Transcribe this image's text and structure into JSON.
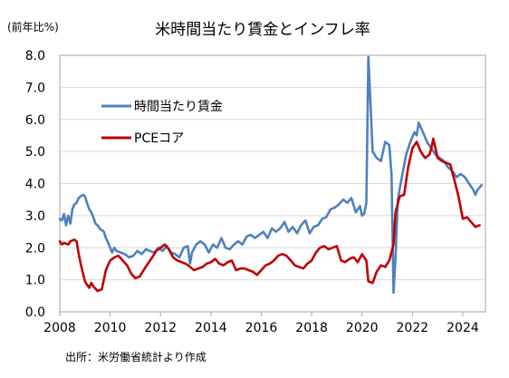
{
  "chart_data": {
    "type": "line",
    "title": "米時間当たり賃金とインフレ率",
    "ylabel": "(前年比%)",
    "xlabel": "",
    "source": "出所：米労働省統計より作成",
    "xlim": [
      2008,
      2024.9
    ],
    "ylim": [
      0,
      8
    ],
    "xticks": [
      2008,
      2010,
      2012,
      2014,
      2016,
      2018,
      2020,
      2022,
      2024
    ],
    "yticks": [
      "0.0",
      "1.0",
      "2.0",
      "3.0",
      "4.0",
      "5.0",
      "6.0",
      "7.0",
      "8.0"
    ],
    "grid": "horizontal",
    "legend_position": "upper-left",
    "series": [
      {
        "name": "時間当たり賃金",
        "color": "#4f81bd",
        "points": [
          [
            2008.0,
            2.9
          ],
          [
            2008.08,
            2.85
          ],
          [
            2008.17,
            3.05
          ],
          [
            2008.25,
            2.7
          ],
          [
            2008.33,
            3.0
          ],
          [
            2008.42,
            2.75
          ],
          [
            2008.5,
            3.2
          ],
          [
            2008.58,
            3.35
          ],
          [
            2008.67,
            3.4
          ],
          [
            2008.75,
            3.55
          ],
          [
            2008.83,
            3.6
          ],
          [
            2008.92,
            3.65
          ],
          [
            2009.0,
            3.6
          ],
          [
            2009.08,
            3.4
          ],
          [
            2009.17,
            3.2
          ],
          [
            2009.25,
            3.1
          ],
          [
            2009.33,
            2.95
          ],
          [
            2009.42,
            2.75
          ],
          [
            2009.5,
            2.7
          ],
          [
            2009.58,
            2.6
          ],
          [
            2009.67,
            2.55
          ],
          [
            2009.75,
            2.5
          ],
          [
            2009.83,
            2.3
          ],
          [
            2009.92,
            2.15
          ],
          [
            2010.0,
            2.0
          ],
          [
            2010.08,
            1.85
          ],
          [
            2010.17,
            2.0
          ],
          [
            2010.25,
            1.9
          ],
          [
            2010.42,
            1.85
          ],
          [
            2010.58,
            1.8
          ],
          [
            2010.75,
            1.7
          ],
          [
            2010.92,
            1.75
          ],
          [
            2011.08,
            1.9
          ],
          [
            2011.25,
            1.8
          ],
          [
            2011.42,
            1.95
          ],
          [
            2011.58,
            1.9
          ],
          [
            2011.75,
            1.85
          ],
          [
            2011.92,
            2.0
          ],
          [
            2012.08,
            1.9
          ],
          [
            2012.25,
            2.05
          ],
          [
            2012.42,
            1.85
          ],
          [
            2012.58,
            1.8
          ],
          [
            2012.75,
            1.7
          ],
          [
            2012.92,
            2.0
          ],
          [
            2013.08,
            2.05
          ],
          [
            2013.17,
            1.5
          ],
          [
            2013.25,
            1.85
          ],
          [
            2013.42,
            2.1
          ],
          [
            2013.58,
            2.2
          ],
          [
            2013.75,
            2.1
          ],
          [
            2013.92,
            1.85
          ],
          [
            2014.08,
            2.1
          ],
          [
            2014.25,
            2.0
          ],
          [
            2014.42,
            2.3
          ],
          [
            2014.58,
            2.0
          ],
          [
            2014.75,
            1.95
          ],
          [
            2014.92,
            2.1
          ],
          [
            2015.08,
            2.2
          ],
          [
            2015.25,
            2.1
          ],
          [
            2015.42,
            2.35
          ],
          [
            2015.58,
            2.4
          ],
          [
            2015.75,
            2.3
          ],
          [
            2015.92,
            2.4
          ],
          [
            2016.08,
            2.5
          ],
          [
            2016.25,
            2.3
          ],
          [
            2016.42,
            2.6
          ],
          [
            2016.58,
            2.5
          ],
          [
            2016.75,
            2.6
          ],
          [
            2016.92,
            2.8
          ],
          [
            2017.08,
            2.5
          ],
          [
            2017.25,
            2.65
          ],
          [
            2017.42,
            2.45
          ],
          [
            2017.58,
            2.7
          ],
          [
            2017.75,
            2.85
          ],
          [
            2017.92,
            2.45
          ],
          [
            2018.08,
            2.65
          ],
          [
            2018.25,
            2.7
          ],
          [
            2018.42,
            2.9
          ],
          [
            2018.58,
            2.95
          ],
          [
            2018.75,
            3.2
          ],
          [
            2018.92,
            3.25
          ],
          [
            2019.08,
            3.35
          ],
          [
            2019.25,
            3.5
          ],
          [
            2019.42,
            3.4
          ],
          [
            2019.58,
            3.55
          ],
          [
            2019.75,
            3.1
          ],
          [
            2019.92,
            3.3
          ],
          [
            2020.0,
            3.0
          ],
          [
            2020.08,
            3.05
          ],
          [
            2020.17,
            3.4
          ],
          [
            2020.25,
            7.95
          ],
          [
            2020.33,
            6.6
          ],
          [
            2020.42,
            5.0
          ],
          [
            2020.58,
            4.8
          ],
          [
            2020.75,
            4.7
          ],
          [
            2020.92,
            5.3
          ],
          [
            2021.08,
            5.2
          ],
          [
            2021.17,
            4.3
          ],
          [
            2021.25,
            0.6
          ],
          [
            2021.33,
            1.7
          ],
          [
            2021.42,
            3.5
          ],
          [
            2021.58,
            4.2
          ],
          [
            2021.75,
            4.9
          ],
          [
            2021.92,
            5.3
          ],
          [
            2022.08,
            5.6
          ],
          [
            2022.17,
            5.5
          ],
          [
            2022.25,
            5.9
          ],
          [
            2022.42,
            5.6
          ],
          [
            2022.58,
            5.3
          ],
          [
            2022.75,
            5.1
          ],
          [
            2022.92,
            4.9
          ],
          [
            2023.08,
            4.8
          ],
          [
            2023.25,
            4.7
          ],
          [
            2023.42,
            4.5
          ],
          [
            2023.58,
            4.4
          ],
          [
            2023.75,
            4.2
          ],
          [
            2023.92,
            4.3
          ],
          [
            2024.08,
            4.2
          ],
          [
            2024.25,
            4.0
          ],
          [
            2024.42,
            3.8
          ],
          [
            2024.5,
            3.65
          ],
          [
            2024.58,
            3.8
          ],
          [
            2024.75,
            3.95
          ]
        ]
      },
      {
        "name": "PCEコア",
        "color": "#c00000",
        "points": [
          [
            2008.0,
            2.2
          ],
          [
            2008.08,
            2.1
          ],
          [
            2008.17,
            2.15
          ],
          [
            2008.33,
            2.1
          ],
          [
            2008.42,
            2.2
          ],
          [
            2008.58,
            2.25
          ],
          [
            2008.67,
            2.2
          ],
          [
            2008.75,
            1.8
          ],
          [
            2008.83,
            1.5
          ],
          [
            2008.92,
            1.2
          ],
          [
            2009.0,
            0.95
          ],
          [
            2009.08,
            0.85
          ],
          [
            2009.17,
            0.75
          ],
          [
            2009.25,
            0.9
          ],
          [
            2009.33,
            0.8
          ],
          [
            2009.5,
            0.65
          ],
          [
            2009.67,
            0.7
          ],
          [
            2009.83,
            1.3
          ],
          [
            2010.0,
            1.6
          ],
          [
            2010.17,
            1.7
          ],
          [
            2010.33,
            1.75
          ],
          [
            2010.5,
            1.6
          ],
          [
            2010.67,
            1.45
          ],
          [
            2010.83,
            1.2
          ],
          [
            2011.0,
            1.05
          ],
          [
            2011.17,
            1.1
          ],
          [
            2011.33,
            1.3
          ],
          [
            2011.5,
            1.5
          ],
          [
            2011.67,
            1.7
          ],
          [
            2011.83,
            1.9
          ],
          [
            2012.0,
            2.0
          ],
          [
            2012.17,
            2.1
          ],
          [
            2012.33,
            1.95
          ],
          [
            2012.5,
            1.7
          ],
          [
            2012.67,
            1.6
          ],
          [
            2012.83,
            1.55
          ],
          [
            2013.0,
            1.5
          ],
          [
            2013.17,
            1.4
          ],
          [
            2013.33,
            1.3
          ],
          [
            2013.5,
            1.35
          ],
          [
            2013.67,
            1.4
          ],
          [
            2013.83,
            1.5
          ],
          [
            2014.0,
            1.55
          ],
          [
            2014.17,
            1.65
          ],
          [
            2014.33,
            1.5
          ],
          [
            2014.5,
            1.45
          ],
          [
            2014.67,
            1.55
          ],
          [
            2014.83,
            1.6
          ],
          [
            2015.0,
            1.3
          ],
          [
            2015.17,
            1.35
          ],
          [
            2015.33,
            1.35
          ],
          [
            2015.5,
            1.3
          ],
          [
            2015.67,
            1.25
          ],
          [
            2015.83,
            1.15
          ],
          [
            2016.0,
            1.3
          ],
          [
            2016.17,
            1.45
          ],
          [
            2016.33,
            1.5
          ],
          [
            2016.5,
            1.6
          ],
          [
            2016.67,
            1.75
          ],
          [
            2016.83,
            1.8
          ],
          [
            2017.0,
            1.75
          ],
          [
            2017.17,
            1.6
          ],
          [
            2017.33,
            1.45
          ],
          [
            2017.5,
            1.4
          ],
          [
            2017.67,
            1.35
          ],
          [
            2017.83,
            1.5
          ],
          [
            2018.0,
            1.6
          ],
          [
            2018.17,
            1.85
          ],
          [
            2018.33,
            2.0
          ],
          [
            2018.5,
            2.05
          ],
          [
            2018.67,
            1.95
          ],
          [
            2018.83,
            2.0
          ],
          [
            2019.0,
            2.05
          ],
          [
            2019.17,
            1.6
          ],
          [
            2019.33,
            1.55
          ],
          [
            2019.5,
            1.65
          ],
          [
            2019.67,
            1.7
          ],
          [
            2019.83,
            1.55
          ],
          [
            2020.0,
            1.8
          ],
          [
            2020.17,
            1.6
          ],
          [
            2020.25,
            0.95
          ],
          [
            2020.42,
            0.9
          ],
          [
            2020.58,
            1.25
          ],
          [
            2020.75,
            1.45
          ],
          [
            2020.92,
            1.4
          ],
          [
            2021.08,
            1.6
          ],
          [
            2021.25,
            2.1
          ],
          [
            2021.33,
            3.1
          ],
          [
            2021.5,
            3.6
          ],
          [
            2021.67,
            3.65
          ],
          [
            2021.83,
            4.5
          ],
          [
            2022.0,
            5.1
          ],
          [
            2022.17,
            5.3
          ],
          [
            2022.33,
            5.0
          ],
          [
            2022.5,
            4.8
          ],
          [
            2022.67,
            4.9
          ],
          [
            2022.75,
            5.1
          ],
          [
            2022.83,
            5.4
          ],
          [
            2023.0,
            4.8
          ],
          [
            2023.17,
            4.7
          ],
          [
            2023.33,
            4.65
          ],
          [
            2023.5,
            4.6
          ],
          [
            2023.67,
            4.1
          ],
          [
            2023.83,
            3.6
          ],
          [
            2024.0,
            2.9
          ],
          [
            2024.17,
            2.95
          ],
          [
            2024.33,
            2.8
          ],
          [
            2024.5,
            2.65
          ],
          [
            2024.67,
            2.7
          ]
        ]
      }
    ]
  }
}
